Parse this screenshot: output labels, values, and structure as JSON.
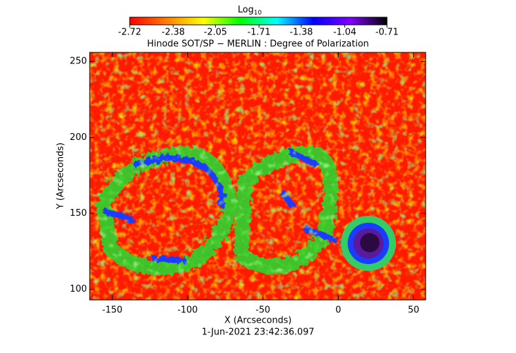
{
  "chart_data": {
    "type": "heatmap",
    "title": "Hinode SOT/SP − MERLIN : Degree of Polarization",
    "colorbar_label": "Log",
    "colorbar_label_subscript": "10",
    "xlabel": "X (Arcseconds)",
    "ylabel": "Y (Arcseconds)",
    "footer": "1-Jun-2021 23:42:36.097",
    "xlim": [
      -165,
      58
    ],
    "xticks": [
      -150,
      -100,
      -50,
      0,
      50
    ],
    "ylim": [
      93,
      256
    ],
    "yticks": [
      100,
      150,
      200,
      250
    ],
    "clim": [
      -2.72,
      -0.71
    ],
    "cticks": [
      -2.72,
      -2.38,
      -2.05,
      -1.71,
      -1.38,
      -1.04,
      -0.71
    ],
    "colormap": [
      "#ff0000",
      "#ff7f00",
      "#ffff00",
      "#00ff00",
      "#00ffff",
      "#0000ff",
      "#8000ff",
      "#000000"
    ]
  }
}
